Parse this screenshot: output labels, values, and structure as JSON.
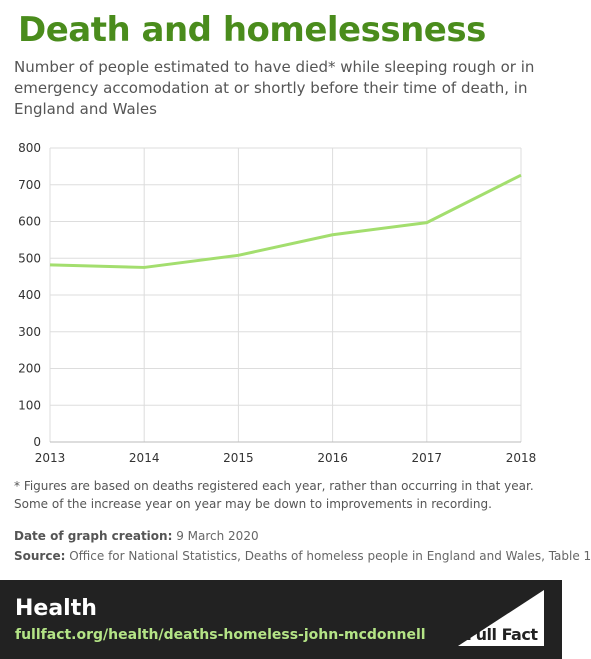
{
  "chart_data": {
    "type": "line",
    "title": "Death and homelessness",
    "subtitle": "Number of people estimated to have died* while sleeping rough or in emergency accomodation at or shortly before their time of death, in England and Wales",
    "x": [
      2013,
      2014,
      2015,
      2016,
      2017,
      2018
    ],
    "values": [
      482,
      475,
      508,
      564,
      597,
      726
    ],
    "color": "#a3de6e",
    "xlim": [
      2013,
      2018
    ],
    "xticks": [
      2013,
      2014,
      2015,
      2016,
      2017,
      2018
    ],
    "ylim": [
      0,
      800
    ],
    "yticks": [
      0,
      100,
      200,
      300,
      400,
      500,
      600,
      700,
      800
    ],
    "grid": true
  },
  "footnote": "* Figures are based on deaths registered each year, rather than occurring in that year. Some of the increase year on year may be down to improvements in recording.",
  "date": {
    "label": "Date of graph creation:",
    "text": "9 March 2020"
  },
  "source": {
    "label": "Source:",
    "text": "Office for National Statistics, Deaths of homeless people in England and Wales, Table 1"
  },
  "footer": {
    "section": "Health",
    "url": "fullfact.org/health/deaths-homeless-john-mcdonnell",
    "logo": "Full Fact"
  }
}
